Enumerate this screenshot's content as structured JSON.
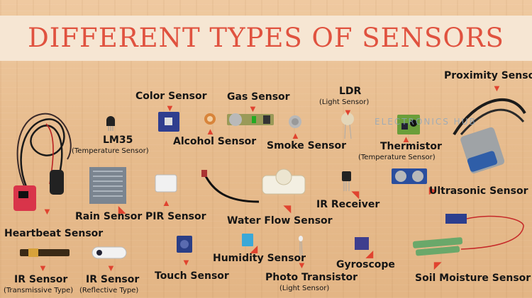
{
  "title": "DIFFERENT TYPES OF SENSORS",
  "watermark": "ELECTRONICS HUB",
  "colors": {
    "title": "#e0523f",
    "arrow": "#e0432f",
    "background": "#e9be90",
    "banner": "#f6e6d3"
  },
  "labels": {
    "proximity": "Proximity Sensor",
    "color": "Color Sensor",
    "gas": "Gas Sensor",
    "ldr": "LDR",
    "ldr_sub": "(Light Sensor)",
    "lm35": "LM35",
    "lm35_sub": "(Temperature Sensor)",
    "alcohol": "Alcohol Sensor",
    "smoke": "Smoke Sensor",
    "thermistor": "Thermistor",
    "thermistor_sub": "(Temperature Sensor)",
    "ultrasonic": "Ultrasonic Sensor",
    "rain": "Rain Sensor",
    "pir": "PIR Sensor",
    "water_flow": "Water Flow Sensor",
    "ir_receiver": "IR Receiver",
    "heartbeat": "Heartbeat Sensor",
    "ir_trans": "IR Sensor",
    "ir_trans_sub": "(Transmissive Type)",
    "ir_refl": "IR Sensor",
    "ir_refl_sub": "(Reflective Type)",
    "touch": "Touch Sensor",
    "humidity": "Humidity Sensor",
    "photo_transistor": "Photo Transistor",
    "photo_transistor_sub": "(Light Sensor)",
    "gyroscope": "Gyroscope",
    "soil_moisture": "Soil Moisture Sensor"
  }
}
